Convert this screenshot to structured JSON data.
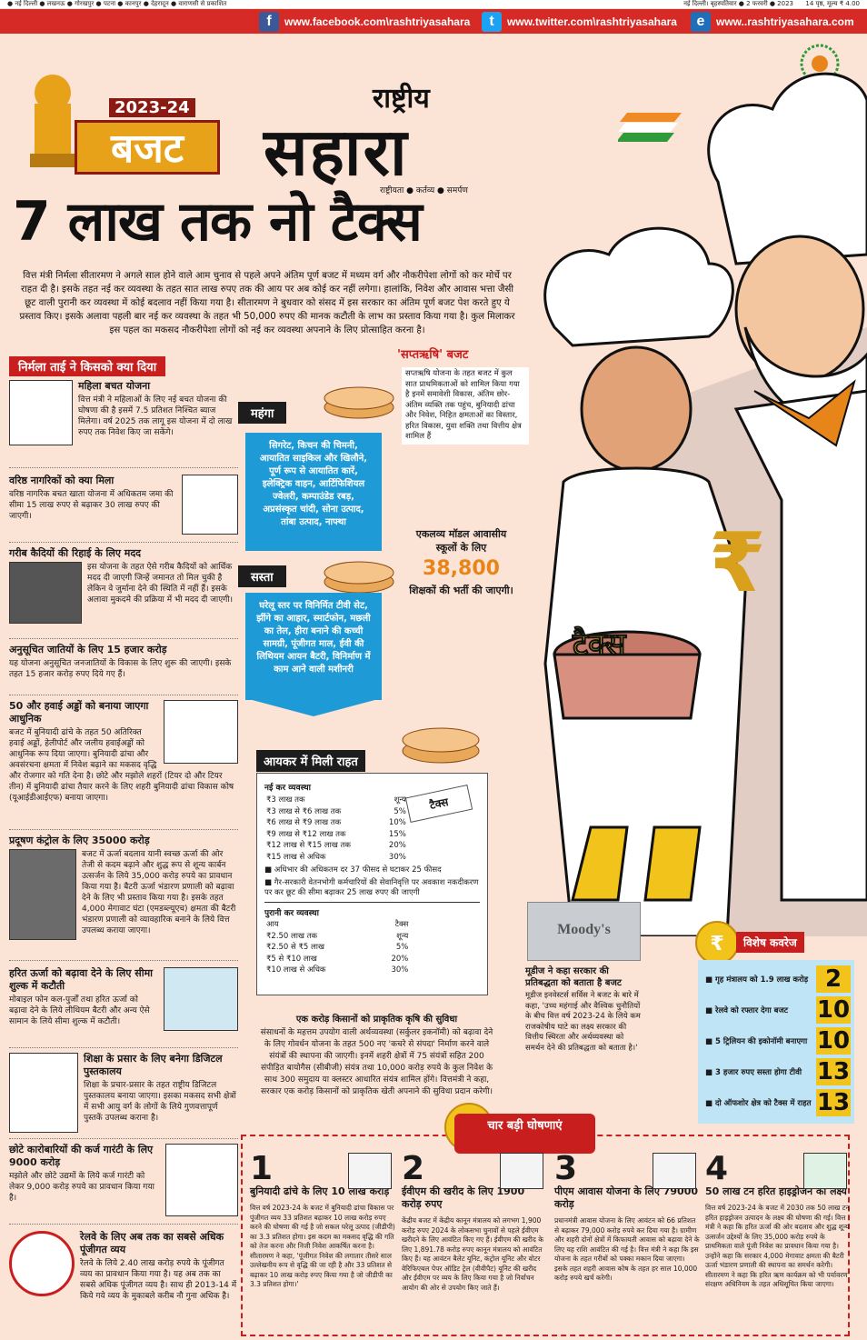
{
  "topbar": {
    "cities": "● नई दिल्ली ● लखनऊ ● गोरखपुर ● पटना ● कानपुर ● देहरादून ● वाराणसी से प्रकाशित",
    "dateline": "नई दिल्ली। बृहस्पतिवार ● 2 फरवरी ● 2023",
    "price": "14 पृष्ठ, मूल्य ₹ 4.00"
  },
  "social": {
    "facebook": "www.facebook.com\\rashtriyasahara",
    "twitter": "www.twitter.com\\rashtriyasahara",
    "web": "www..rashtriyasahara.com"
  },
  "masthead": {
    "budget_year": "2023-24",
    "budget_word": "बजट",
    "paper_small": "राष्ट्रीय",
    "paper_big": "सहारा",
    "tagline": "राष्ट्रीयता ● कर्तव्य ● समर्पण"
  },
  "headline": "7 लाख तक नो टैक्स",
  "lead": "वित्त मंत्री निर्मला सीतारमण ने अगले साल होने वाले आम चुनाव से पहले अपने अंतिम पूर्ण बजट में मध्यम वर्ग और नौकरीपेशा लोगों को कर मोर्चे पर राहत दी है। इसके तहत नई कर व्यवस्था के तहत सात लाख रुपए तक की आय पर अब कोई कर नहीं लगेगा। हालांकि, निवेश और आवास भत्ता जैसी छूट वाली पुरानी कर व्यवस्था में कोई बदलाव नहीं किया गया है। सीतारमण ने बुधवार को संसद में इस सरकार का अंतिम पूर्ण बजट पेश करते हुए ये प्रस्ताव किए। इसके अलावा पहली बार नई कर व्यवस्था के तहत भी 50,000 रुपए की मानक कटौती के लाभ का प्रस्ताव किया गया है। कुल मिलाकर इस पहल का मकसद नौकरीपेशा लोगों को नई कर व्यवस्था अपनाने के लिए प्रोत्साहित करना है।",
  "left_header": "निर्मला ताई ने किसको क्या दिया",
  "items": [
    {
      "title": "महिला बचत योजना",
      "body": "वित्त मंत्री ने महिलाओं के लिए नई बचत योजना की घोषणा की है इसमें 7.5 प्रतिशत निश्चित ब्याज मिलेगा। वर्ष 2025 तक लागू इस योजना में दो लाख रुपए तक निवेश किए जा सकेंगे।"
    },
    {
      "title": "वरिष्ठ नागरिकों को क्या मिला",
      "body": "वरिष्ठ नागरिक बचत खाता योजना में अधिकतम जमा की सीमा 15 लाख रुपए से बढ़ाकर 30 लाख रुपए की जाएगी।"
    },
    {
      "title": "गरीब कैदियों की रिहाई के लिए मदद",
      "body": "इस योजना के तहत ऐसे गरीब कैदियों को आर्थिक मदद दी जाएगी जिन्हें जमानत तो मिल चुकी है लेकिन वे जुर्माना देने की स्थिति में नहीं हैं। इसके अलावा मुकदमे की प्रक्रिया में भी मदद दी जाएगी।"
    },
    {
      "title": "अनुसूचित जातियों के लिए 15 हजार करोड़",
      "body": "यह योजना अनुसूचित जनजातियों के विकास के लिए शुरू की जाएगी। इसके तहत 15 हजार करोड़ रुपए दिये गए हैं।"
    },
    {
      "title": "50 और हवाई अड्डों को बनाया जाएगा आधुनिक",
      "body": "बजट में बुनियादी ढांचे के तहत 50 अतिरिक्त हवाई अड्डों, हेलीपोर्ट और जलीय हवाईअड्डों को आधुनिक रूप दिया जाएगा। बुनियादी ढांचा और अवसंरचना क्षमता में निवेश बढ़ाने का मकसद वृद्धि और रोजगार को गति देना है। छोटे और मझोले शहरों (टियर दो और टियर तीन) में बुनियादी ढांचा तैयार करने के लिए शहरी बुनियादी ढांचा विकास कोष (यूआईडीआईएफ) बनाया जाएगा।"
    },
    {
      "title": "प्रदूषण कंट्रोल के लिए 35000 करोड़",
      "body": "बजट में ऊर्जा बदलाव यानी स्वच्छ ऊर्जा की ओर तेजी से कदम बढ़ाने और शुद्ध रूप से शून्य कार्बन उत्सर्जन के लिये 35,000 करोड़ रुपये का प्रावधान किया गया है। बैटरी ऊर्जा भंडारण प्रणाली को बढ़ावा देने के लिए भी प्रस्ताव किया गया है। इसके तहत 4,000 मेगावाट घंटा (एमडब्ल्यूएच) क्षमता की बैटरी भंडारण प्रणाली को व्यावहारिक बनाने के लिये वित्त उपलब्ध कराया जाएगा।"
    },
    {
      "title": "हरित ऊर्जा को बढ़ावा देने के लिए सीमा शुल्क में कटौती",
      "body": "मोबाइल फोन कल-पुर्जों तथा हरित ऊर्जा को बढ़ावा देने के लिये लीथियम बैटरी और अन्य ऐसे सामान के लिये सीमा शुल्क में कटौती।"
    },
    {
      "title": "शिक्षा के प्रसार के लिए बनेगा डिजिटल पुस्तकालय",
      "body": "शिक्षा के प्रचार-प्रसार के तहत राष्ट्रीय डिजिटल पुस्तकालय बनाया जाएगा। इसका मकसद सभी क्षेत्रों में सभी आयु वर्ग के लोगों के लिये गुणवत्तापूर्ण पुस्तकें उपलब्ध कराना है।"
    },
    {
      "title": "छोटे कारोबारियों की कर्ज गारंटी के लिए 9000 करोड़",
      "body": "मझोले और छोटे उद्यमों के लिये कर्ज गारंटी को लेकर 9,000 करोड़ रुपये का प्रावधान किया गया है।"
    },
    {
      "title": "रेलवे के लिए अब तक का सबसे अधिक पूंजीगत व्यय",
      "body": "रेलवे के लिये 2.40 लाख करोड़ रुपये के पूंजीगत व्यय का प्रावधान किया गया है। यह अब तक का सबसे अधिक पूंजीगत व्यय है। साथ ही 2013-14 में किये गये व्यय के मुकाबले करीब नौ गुना अधिक है।"
    }
  ],
  "costly": {
    "label": "महंगा",
    "text": "सिगरेट, किचन की चिमनी, आयातित साइकिल और खिलौने, पूर्ण रूप से आयातित कारें, इलेक्ट्रिक वाहन, आर्टिफिशियल ज्वेलरी, कम्पाउंडेड रबड़, अप्रसंस्कृत चांदी, सोना उत्पाद, तांबा उत्पाद, नाफ्था"
  },
  "cheap": {
    "label": "सस्ता",
    "text": "घरेलू स्तर पर विनिर्मित टीवी सेट, झींगे का आहार, स्मार्टफोन, मछली का तेल, हीरा बनाने की कच्ची सामग्री, पूंजीगत माल, ईवी की लिथियम आयन बैटरी, विनिर्माण में काम आने वाली मशीनरी"
  },
  "saptarishi": {
    "title": "'सप्तऋषि' बजट",
    "body": "सप्तऋषि योजना के तहत बजट में कुल सात प्राथमिकताओं को शामिल किया गया है इनमें समावेशी विकास, अंतिम छोर-अंतिम व्यक्ति तक पहुंच, बुनियादी ढांचा और निवेश, निहित क्षमताओं का विस्तार, हरित विकास, युवा शक्ति तथा वित्तीय क्षेत्र शामिल हैं"
  },
  "eklavya": {
    "pre": "एकलव्य मॉडल आवासीय स्कूलों के लिए",
    "num": "38,800",
    "post": "शिक्षकों की भर्ती की जाएगी।"
  },
  "tax": {
    "title": "आयकर में मिली राहत",
    "new_head": "नई कर व्यवस्था",
    "new_rows": [
      [
        "₹3 लाख तक",
        "शून्य"
      ],
      [
        "₹3 लाख से ₹6 लाख तक",
        "5%"
      ],
      [
        "₹6 लाख से ₹9 लाख तक",
        "10%"
      ],
      [
        "₹9 लाख से ₹12 लाख तक",
        "15%"
      ],
      [
        "₹12 लाख से ₹15 लाख तक",
        "20%"
      ],
      [
        "₹15 लाख से अधिक",
        "30%"
      ]
    ],
    "bullet1": "अधिभार की अधिकतम दर 37 फीसद से घटाकर 25 फीसद",
    "bullet2": "गैर-सरकारी वेतनभोगी कर्मचारियों की सेवानिवृत्ति पर अवकाश नकदीकरण पर कर छूट की सीमा बढ़ाकर 25 लाख रुपए की जाएगी",
    "old_head": "पुरानी कर व्यवस्था",
    "old_cols": [
      "आय",
      "टैक्स"
    ],
    "old_rows": [
      [
        "₹2.50 लाख तक",
        "शून्य"
      ],
      [
        "₹2.50 से ₹5 लाख",
        "5%"
      ],
      [
        "₹5 से ₹10 लाख",
        "20%"
      ],
      [
        "₹10 लाख से अधिक",
        "30%"
      ]
    ]
  },
  "kisan": {
    "title": "एक करोड़ किसानों को प्राकृतिक कृषि की सुविधा",
    "body": "संसाधनों के महत्तम उपयोग वाली अर्थव्यवस्था (सर्कुलर इकनॉमी) को बढ़ावा देने के लिए गोवर्धन योजना के तहत 500 नए 'कचरे से संपदा' निर्माण करने वाले संयंत्रों की स्थापना की जाएगी। इनमें शहरी क्षेत्रों में 75 संयंत्रों सहित 200 संपीड़ित बायोगैस (सीबीजी) संयंत्र तथा 10,000 करोड़ रुपये के कुल निवेश के साथ 300 समुदाय या क्लस्टर आधारित संयंत्र शामिल होंगे। वित्तमंत्री ने कहा, सरकार एक करोड़ किसानों को प्राकृतिक खेती अपनाने की सुविधा प्रदान करेगी।"
  },
  "moodys": {
    "logo": "Moody's",
    "title": "मूडीज ने कहा सरकार की प्रतिबद्धता को बताता है बजट",
    "body": "मूडीज इनवेस्टर्स सर्विस ने बजट के बारे में कहा, 'उच्च महंगाई और वैश्विक चुनौतियों के बीच वित्त वर्ष 2023-24 के लिये कम राजकोषीय घाटे का लक्ष्य सरकार की वित्तीय स्थिरता और अर्थव्यवस्था को समर्थन देने की प्रतिबद्धता को बताता है।'"
  },
  "vishesh": {
    "title": "विशेष कवरेज",
    "rows": [
      {
        "label": "गृह मंत्रालय को 1.9 लाख करोड़",
        "page": "2"
      },
      {
        "label": "रेलवे को रफ्तार देगा बजट",
        "page": "10"
      },
      {
        "label": "5 ट्रिलियन की इकोनॉमी बनाएगा",
        "page": "10"
      },
      {
        "label": "3 हजार रुपए सस्ता होगा टीवी",
        "page": "13"
      },
      {
        "label": "दो ऑफशोर क्षेत्र को टैक्स में राहत",
        "page": "13"
      }
    ]
  },
  "char": {
    "title": "चार बड़ी घोषणाएं",
    "cols": [
      {
        "num": "1",
        "title": "बुनियादी ढांचे के लिए 10 लाख करोड़",
        "body": "वित्त वर्ष 2023-24 के बजट में बुनियादी ढांचा विकास पर पूंजीगत व्यय 33 प्रतिशत बढ़ाकर 10 लाख करोड़ रुपए करने की घोषणा की गई है जो सकल घरेलू उत्पाद (जीडीपी) का 3.3 प्रतिशत होगा। इस कदम का मकसद वृद्धि की गति को तेज करना और निजी निवेश आकर्षित करना है। सीतारमण ने कहा, 'पूंजीगत निवेश की लगातार तीसरे साल उल्लेखनीय रूप से वृद्धि की जा रही है और 33 प्रतिशत से बढ़ाकर 10 लाख करोड़ रुपए किया गया है जो जीडीपी का 3.3 प्रतिशत होगा।'"
      },
      {
        "num": "2",
        "title": "ईवीएम की खरीद के लिए 1900 करोड़ रुपए",
        "body": "केंद्रीय बजट में केंद्रीय कानून मंत्रालय को लगभग 1,900 करोड़ रुपए 2024 के लोकसभा चुनावों से पहले ईवीएम खरीदने के लिए आवंटित किए गए हैं। ईवीएम की खरीद के लिए 1,891.78 करोड़ रुपए कानून मंत्रालय को आवंटित किए हैं। यह आवंटन बैलेट यूनिट, कंट्रोल यूनिट और वोटर वेरिफिएबल पेपर ऑडिट ट्रेल (वीवीपैट) यूनिट की खरीद और ईवीएम पर व्यय के लिए किया गया है जो निर्वाचन आयोग की ओर से उपयोग किए जाते हैं।"
      },
      {
        "num": "3",
        "title": "पीएम आवास योजना के लिए 79000 करोड़",
        "body": "प्रधानमंत्री आवास योजना के लिए आवंटन को 66 प्रतिशत से बढ़ाकर 79,000 करोड़ रुपये कर दिया गया है। ग्रामीण और शहरी दोनों क्षेत्रों में किफायती आवास को बढ़ावा देने के लिए यह राशि आवंटित की गई है। वित्त मंत्री ने कहा कि इस योजना के तहत गरीबों को पक्का मकान दिया जाएगा। इसके तहत शहरी आवास कोष के तहत हर साल 10,000 करोड़ रुपये खर्च करेगी।"
      },
      {
        "num": "4",
        "title": "50 लाख टन हरित हाइड्रोजन का लक्ष्य",
        "body": "वित्त वर्ष 2023-24 के बजट में 2030 तक 50 लाख टन हरित हाइड्रोजन उत्पादन के लक्ष्य की घोषणा की गई। वित्त मंत्री ने कहा कि हरित ऊर्जा की ओर बदलाव और शुद्ध शून्य उत्सर्जन उद्देश्यों के लिए 35,000 करोड़ रुपये के प्राथमिकता वाले पूंजी निवेश का प्रावधान किया गया है। उन्होंने कहा कि सरकार 4,000 मेगावाट क्षमता की बैटरी ऊर्जा भंडारण प्रणाली की स्थापना का समर्थन करेगी। सीतारमण ने कहा कि हरित ऋण कार्यक्रम को भी पर्यावरण संरक्षण अधिनियम के तहत अधिसूचित किया जाएगा।"
      }
    ]
  },
  "illustration": {
    "bag_text": "टैक्स",
    "paper_text": "टैक्स",
    "rupee": "₹"
  },
  "colors": {
    "accent_red": "#c81e1e",
    "blue": "#1e9bd7",
    "page_bg": "#fbe3d6",
    "yellow": "#f2c31b"
  }
}
